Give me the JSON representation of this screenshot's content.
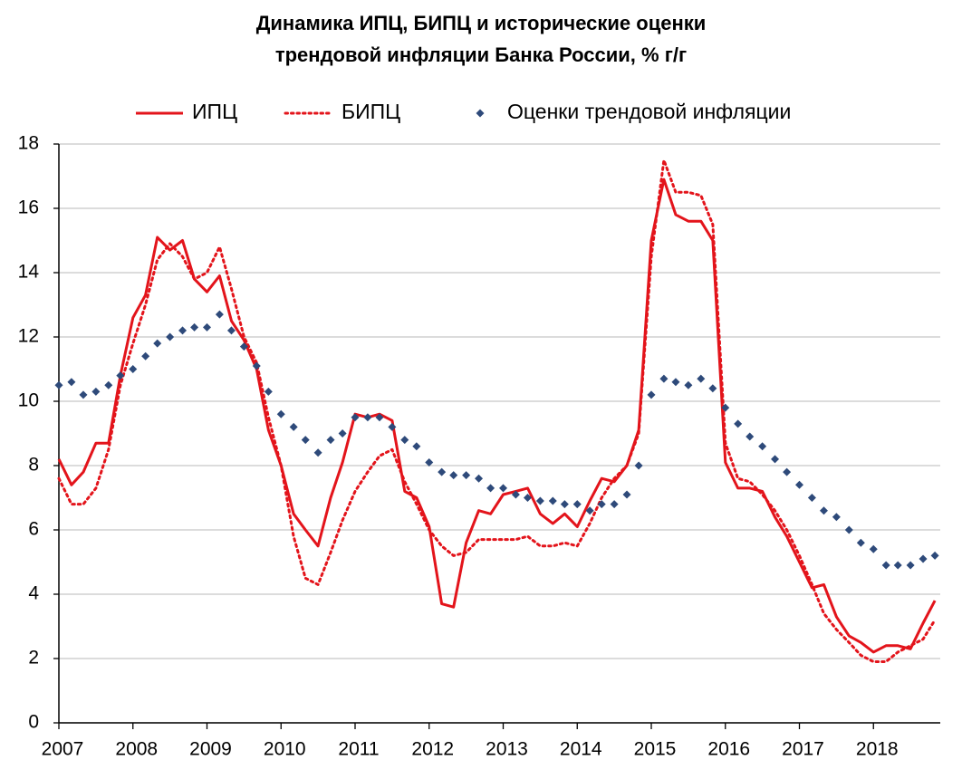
{
  "chart_data": {
    "type": "line",
    "title_lines": [
      "Динамика ИПЦ, БИПЦ и исторические оценки",
      "трендовой инфляции Банка России, % г/г"
    ],
    "x": [
      2007,
      2007.17,
      2007.33,
      2007.5,
      2007.67,
      2007.83,
      2008,
      2008.17,
      2008.33,
      2008.5,
      2008.67,
      2008.83,
      2009,
      2009.17,
      2009.33,
      2009.5,
      2009.67,
      2009.83,
      2010,
      2010.17,
      2010.33,
      2010.5,
      2010.67,
      2010.83,
      2011,
      2011.17,
      2011.33,
      2011.5,
      2011.67,
      2011.83,
      2012,
      2012.17,
      2012.33,
      2012.5,
      2012.67,
      2012.83,
      2013,
      2013.17,
      2013.33,
      2013.5,
      2013.67,
      2013.83,
      2014,
      2014.17,
      2014.33,
      2014.5,
      2014.67,
      2014.83,
      2015,
      2015.17,
      2015.33,
      2015.5,
      2015.67,
      2015.83,
      2016,
      2016.17,
      2016.33,
      2016.5,
      2016.67,
      2016.83,
      2017,
      2017.17,
      2017.33,
      2017.5,
      2017.67,
      2017.83,
      2018,
      2018.17,
      2018.33,
      2018.5,
      2018.67,
      2018.83
    ],
    "series": [
      {
        "name": "ИПЦ",
        "color": "#e3141b",
        "style": "solid",
        "values": [
          8.2,
          7.4,
          7.8,
          8.7,
          8.7,
          10.8,
          12.6,
          13.3,
          15.1,
          14.7,
          15.0,
          13.8,
          13.4,
          13.9,
          12.5,
          11.9,
          11.0,
          9.1,
          8.0,
          6.5,
          6.0,
          5.5,
          7.0,
          8.1,
          9.6,
          9.5,
          9.6,
          9.4,
          7.2,
          7.0,
          6.1,
          3.7,
          3.6,
          5.6,
          6.6,
          6.5,
          7.1,
          7.2,
          7.3,
          6.5,
          6.2,
          6.5,
          6.1,
          6.9,
          7.6,
          7.5,
          8.0,
          9.1,
          15.0,
          16.9,
          15.8,
          15.6,
          15.6,
          15.0,
          8.1,
          7.3,
          7.3,
          7.2,
          6.4,
          5.8,
          5.0,
          4.2,
          4.3,
          3.3,
          2.7,
          2.5,
          2.2,
          2.4,
          2.4,
          2.3,
          3.1,
          3.8
        ]
      },
      {
        "name": "БИПЦ",
        "color": "#e3141b",
        "style": "dotted",
        "values": [
          7.6,
          6.8,
          6.8,
          7.3,
          8.5,
          10.5,
          11.8,
          13.0,
          14.4,
          14.9,
          14.5,
          13.8,
          14.0,
          14.8,
          13.5,
          12.0,
          11.2,
          9.5,
          8.0,
          5.8,
          4.5,
          4.3,
          5.3,
          6.3,
          7.2,
          7.8,
          8.3,
          8.5,
          7.5,
          6.8,
          6.0,
          5.5,
          5.2,
          5.3,
          5.7,
          5.7,
          5.7,
          5.7,
          5.8,
          5.5,
          5.5,
          5.6,
          5.5,
          6.2,
          7.0,
          7.6,
          8.0,
          9.0,
          14.5,
          17.5,
          16.5,
          16.5,
          16.4,
          15.5,
          8.7,
          7.6,
          7.5,
          7.1,
          6.6,
          6.0,
          5.2,
          4.3,
          3.4,
          2.9,
          2.5,
          2.1,
          1.9,
          1.9,
          2.2,
          2.4,
          2.6,
          3.2
        ]
      },
      {
        "name": "Оценки трендовой инфляции",
        "color": "#2e4a7a",
        "style": "markers",
        "values": [
          10.5,
          10.6,
          10.2,
          10.3,
          10.5,
          10.8,
          11.0,
          11.4,
          11.8,
          12.0,
          12.2,
          12.3,
          12.3,
          12.7,
          12.2,
          11.7,
          11.1,
          10.3,
          9.6,
          9.2,
          8.8,
          8.4,
          8.8,
          9.0,
          9.5,
          9.5,
          9.5,
          9.2,
          8.8,
          8.6,
          8.1,
          7.8,
          7.7,
          7.7,
          7.6,
          7.3,
          7.3,
          7.1,
          7.0,
          6.9,
          6.9,
          6.8,
          6.8,
          6.6,
          6.8,
          6.8,
          7.1,
          8.0,
          10.2,
          10.7,
          10.6,
          10.5,
          10.7,
          10.4,
          9.8,
          9.3,
          8.9,
          8.6,
          8.2,
          7.8,
          7.4,
          7.0,
          6.6,
          6.4,
          6.0,
          5.6,
          5.4,
          4.9,
          4.9,
          4.9,
          5.1,
          5.2
        ]
      }
    ],
    "xlim": [
      2007,
      2019
    ],
    "xticks": [
      2007,
      2008,
      2009,
      2010,
      2011,
      2012,
      2013,
      2014,
      2015,
      2016,
      2017,
      2018
    ],
    "ylim": [
      0,
      18
    ],
    "yticks": [
      0,
      2,
      4,
      6,
      8,
      10,
      12,
      14,
      16,
      18
    ],
    "grid": true,
    "legend": "top"
  }
}
